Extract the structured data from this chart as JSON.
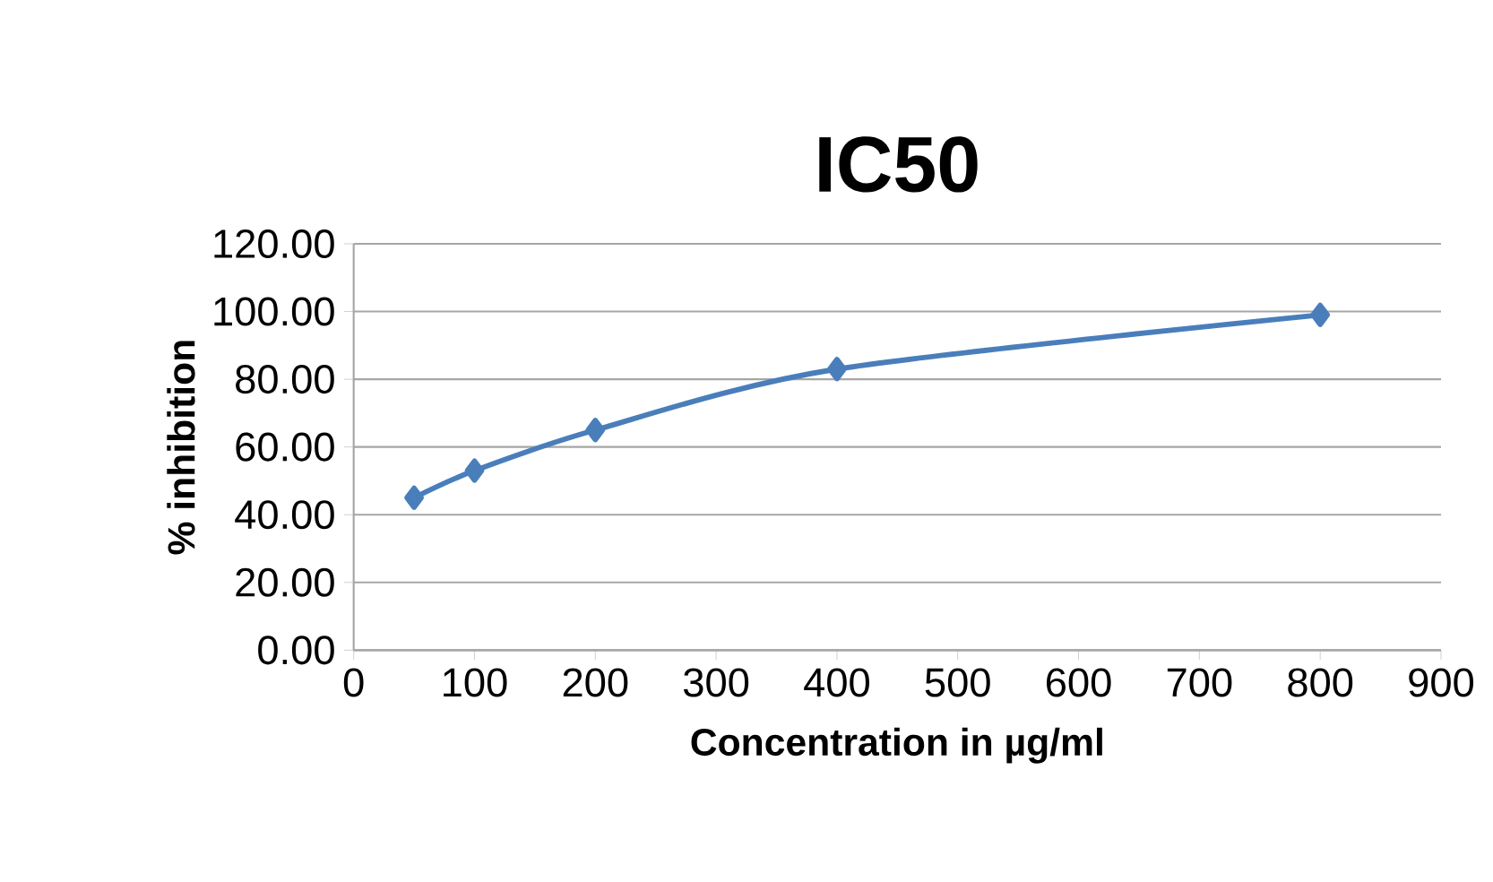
{
  "chart_data": {
    "type": "line",
    "title": "IC50",
    "xlabel": "Concentration in µg/ml",
    "ylabel": "% inhibition",
    "x": [
      50,
      100,
      200,
      400,
      800
    ],
    "series": [
      {
        "color": "#4a7ebb",
        "values": [
          45,
          53,
          65,
          83,
          99
        ]
      }
    ],
    "xlim": [
      0,
      900
    ],
    "xticks": [
      0,
      100,
      200,
      300,
      400,
      500,
      600,
      700,
      800,
      900
    ],
    "ylim": [
      0,
      120
    ],
    "yticks": [
      {
        "value": 0,
        "label": "0.00"
      },
      {
        "value": 20,
        "label": "20.00"
      },
      {
        "value": 40,
        "label": "40.00"
      },
      {
        "value": 60,
        "label": "60.00"
      },
      {
        "value": 80,
        "label": "80.00"
      },
      {
        "value": 100,
        "label": "100.00"
      },
      {
        "value": 120,
        "label": "120.00"
      }
    ],
    "grid": "y",
    "marker": "diamond",
    "line_style": "solid"
  }
}
